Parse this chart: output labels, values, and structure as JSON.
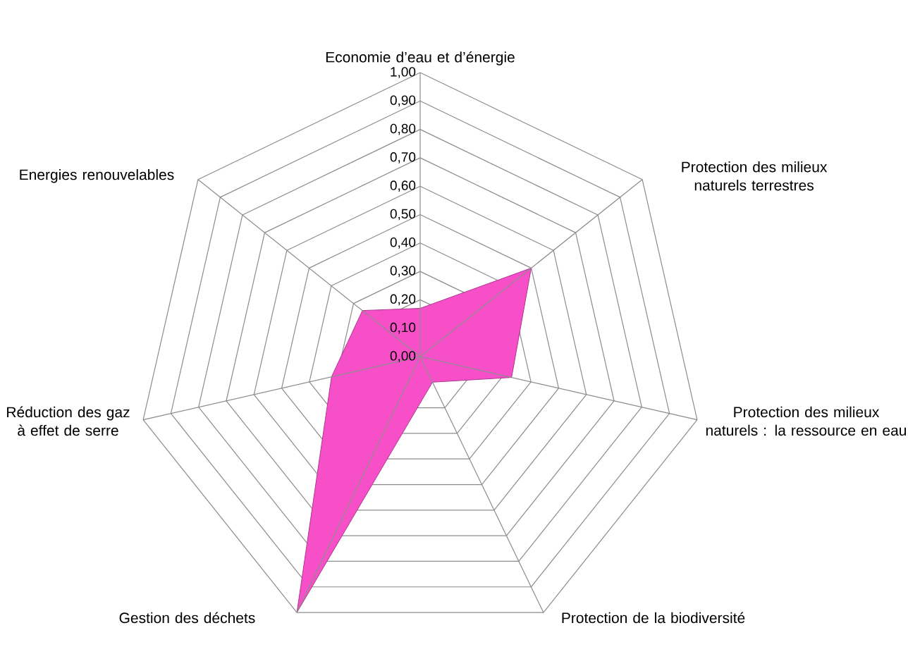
{
  "chart_data": {
    "type": "radar",
    "categories": [
      "Economie d’eau et d’énergie",
      "Protection des milieux naturels terrestres",
      "Protection des milieux naturels : la ressource en eau",
      "Protection de la biodiversité",
      "Gestion des déchets",
      "Réduction des gaz à effet de serre",
      "Energies renouvelables"
    ],
    "series": [
      {
        "color": "#f64fc8",
        "values": [
          0.17,
          0.5,
          0.33,
          0.1,
          1.0,
          0.32,
          0.26
        ]
      }
    ],
    "ylim": [
      0,
      1
    ],
    "yticks": [
      {
        "value": 0,
        "label": "0,00"
      },
      {
        "value": 0.1,
        "label": "0,10"
      },
      {
        "value": 0.2,
        "label": "0,20"
      },
      {
        "value": 0.3,
        "label": "0,30"
      },
      {
        "value": 0.4,
        "label": "0,40"
      },
      {
        "value": 0.5,
        "label": "0,50"
      },
      {
        "value": 0.6,
        "label": "0,60"
      },
      {
        "value": 0.7,
        "label": "0,70"
      },
      {
        "value": 0.8,
        "label": "0,80"
      },
      {
        "value": 0.9,
        "label": "0,90"
      },
      {
        "value": 1.0,
        "label": "1,00"
      }
    ],
    "grid": true
  }
}
